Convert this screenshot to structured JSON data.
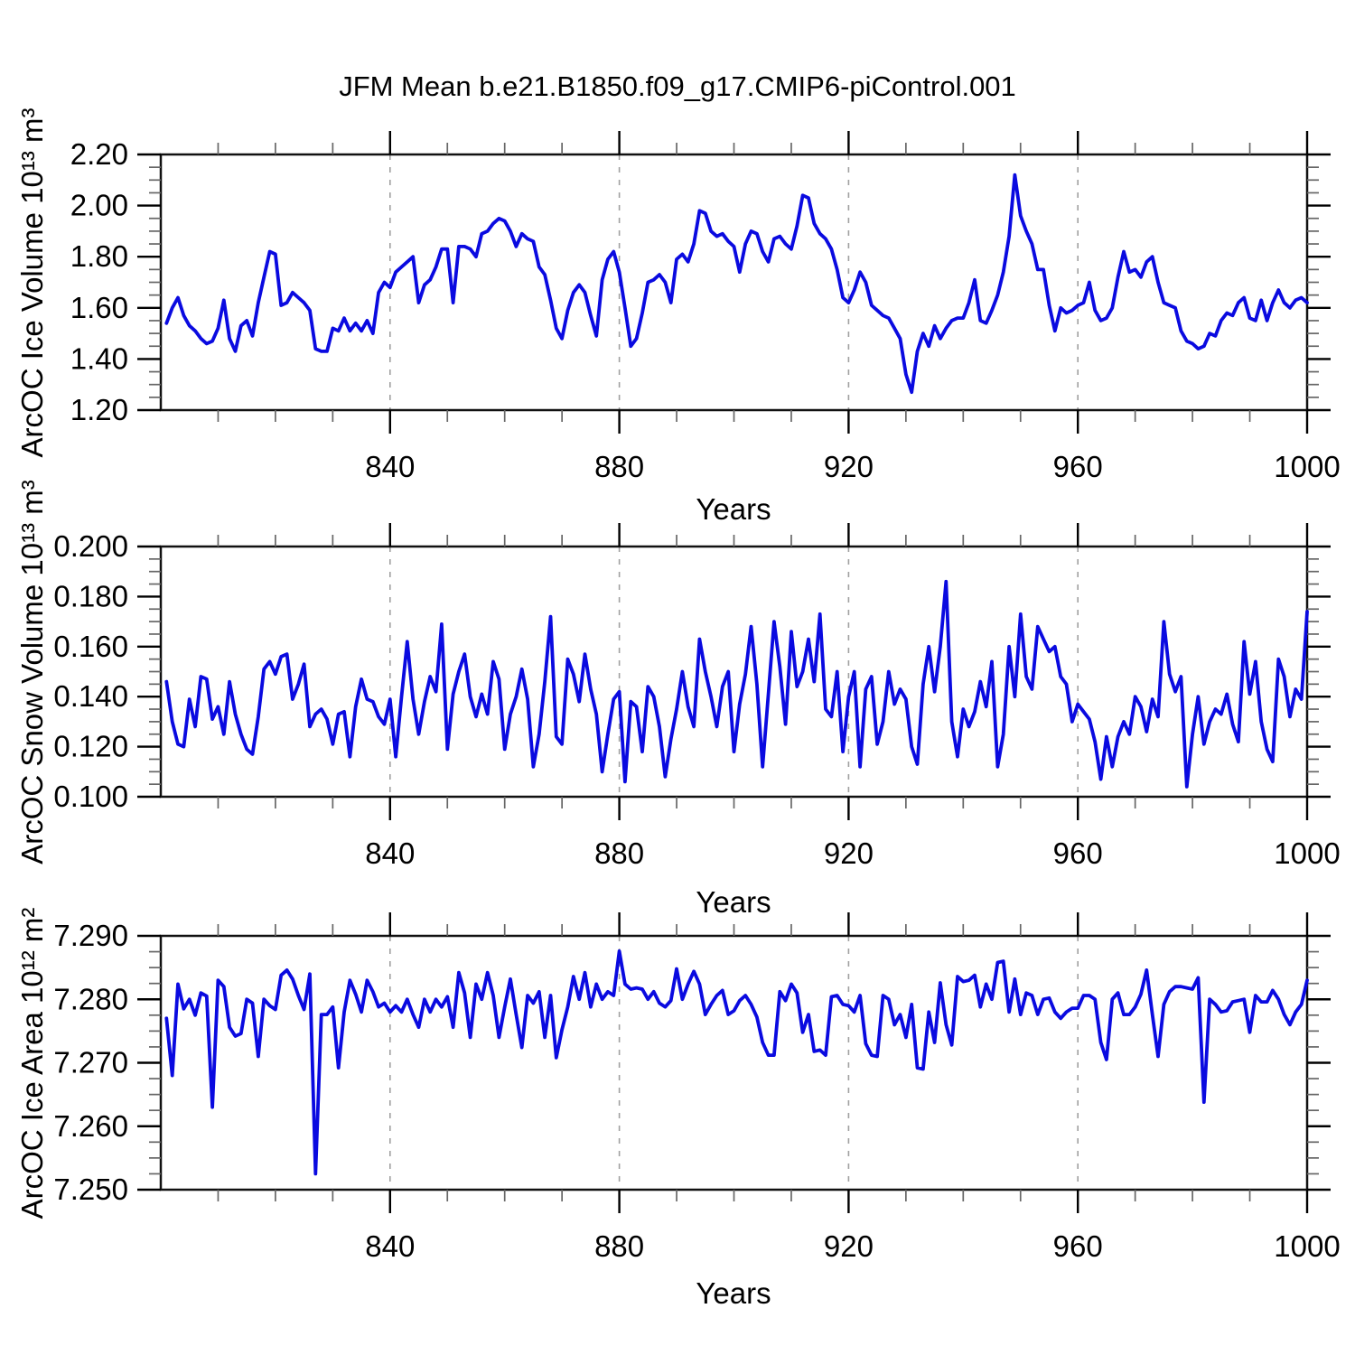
{
  "title": "JFM Mean b.e21.B1850.f09_g17.CMIP6-piControl.001",
  "colors": {
    "line": "#0a0ae0",
    "grid": "#a0a0a0",
    "frame": "#111111",
    "minor_tick": "#666666",
    "major_tick": "#000000"
  },
  "chart_data": [
    {
      "type": "line",
      "ylabel": "ArcOC Ice Volume 10¹³ m³",
      "xlabel": "Years",
      "ylim": [
        1.2,
        2.2
      ],
      "yticks": [
        1.2,
        1.4,
        1.6,
        1.8,
        2.0,
        2.2
      ],
      "ytick_labels": [
        "1.20",
        "1.40",
        "1.60",
        "1.80",
        "2.00",
        "2.20"
      ],
      "xlim": [
        800,
        1000
      ],
      "xticks": [
        840,
        880,
        920,
        960,
        1000
      ],
      "xtick_labels": [
        "840",
        "880",
        "920",
        "960",
        "1000"
      ],
      "xtick_minor": [
        810,
        820,
        830,
        850,
        860,
        870,
        890,
        900,
        910,
        930,
        940,
        950,
        970,
        980,
        990
      ],
      "gridlines_x": [
        840,
        880,
        920,
        960
      ],
      "x_start": 801,
      "values": [
        1.54,
        1.6,
        1.64,
        1.57,
        1.53,
        1.51,
        1.48,
        1.46,
        1.47,
        1.52,
        1.63,
        1.48,
        1.43,
        1.53,
        1.55,
        1.49,
        1.62,
        1.72,
        1.82,
        1.81,
        1.61,
        1.62,
        1.66,
        1.64,
        1.62,
        1.59,
        1.44,
        1.43,
        1.43,
        1.52,
        1.51,
        1.56,
        1.51,
        1.54,
        1.51,
        1.55,
        1.5,
        1.66,
        1.7,
        1.68,
        1.74,
        1.76,
        1.78,
        1.8,
        1.62,
        1.69,
        1.71,
        1.76,
        1.83,
        1.83,
        1.62,
        1.84,
        1.84,
        1.83,
        1.8,
        1.89,
        1.9,
        1.93,
        1.95,
        1.94,
        1.9,
        1.84,
        1.89,
        1.87,
        1.86,
        1.76,
        1.73,
        1.63,
        1.52,
        1.48,
        1.59,
        1.66,
        1.69,
        1.66,
        1.57,
        1.49,
        1.71,
        1.79,
        1.82,
        1.74,
        1.6,
        1.45,
        1.48,
        1.58,
        1.7,
        1.71,
        1.73,
        1.7,
        1.62,
        1.79,
        1.81,
        1.78,
        1.85,
        1.98,
        1.97,
        1.9,
        1.88,
        1.89,
        1.86,
        1.84,
        1.74,
        1.85,
        1.9,
        1.89,
        1.82,
        1.78,
        1.87,
        1.88,
        1.85,
        1.83,
        1.92,
        2.04,
        2.03,
        1.93,
        1.89,
        1.87,
        1.83,
        1.75,
        1.64,
        1.62,
        1.67,
        1.74,
        1.7,
        1.61,
        1.59,
        1.57,
        1.56,
        1.52,
        1.48,
        1.34,
        1.27,
        1.43,
        1.5,
        1.45,
        1.53,
        1.48,
        1.52,
        1.55,
        1.56,
        1.56,
        1.62,
        1.71,
        1.55,
        1.54,
        1.59,
        1.65,
        1.74,
        1.88,
        2.12,
        1.96,
        1.9,
        1.85,
        1.75,
        1.75,
        1.61,
        1.51,
        1.6,
        1.58,
        1.59,
        1.61,
        1.62,
        1.7,
        1.59,
        1.55,
        1.56,
        1.6,
        1.72,
        1.82,
        1.74,
        1.75,
        1.72,
        1.78,
        1.8,
        1.7,
        1.62,
        1.61,
        1.6,
        1.51,
        1.47,
        1.46,
        1.44,
        1.45,
        1.5,
        1.49,
        1.55,
        1.58,
        1.57,
        1.62,
        1.64,
        1.56,
        1.55,
        1.63,
        1.55,
        1.62,
        1.67,
        1.62,
        1.6,
        1.63,
        1.64,
        1.62
      ]
    },
    {
      "type": "line",
      "ylabel": "ArcOC Snow Volume 10¹³ m³",
      "xlabel": "Years",
      "ylim": [
        0.1,
        0.2
      ],
      "yticks": [
        0.1,
        0.12,
        0.14,
        0.16,
        0.18,
        0.2
      ],
      "ytick_labels": [
        "0.100",
        "0.120",
        "0.140",
        "0.160",
        "0.180",
        "0.200"
      ],
      "xlim": [
        800,
        1000
      ],
      "xticks": [
        840,
        880,
        920,
        960,
        1000
      ],
      "xtick_labels": [
        "840",
        "880",
        "920",
        "960",
        "1000"
      ],
      "xtick_minor": [
        810,
        820,
        830,
        850,
        860,
        870,
        890,
        900,
        910,
        930,
        940,
        950,
        970,
        980,
        990
      ],
      "gridlines_x": [
        840,
        880,
        920,
        960
      ],
      "x_start": 801,
      "values": [
        0.146,
        0.13,
        0.121,
        0.12,
        0.139,
        0.128,
        0.148,
        0.147,
        0.131,
        0.136,
        0.125,
        0.146,
        0.133,
        0.125,
        0.119,
        0.117,
        0.132,
        0.151,
        0.154,
        0.149,
        0.156,
        0.157,
        0.139,
        0.145,
        0.153,
        0.128,
        0.133,
        0.135,
        0.131,
        0.121,
        0.133,
        0.134,
        0.116,
        0.136,
        0.147,
        0.139,
        0.138,
        0.132,
        0.129,
        0.139,
        0.116,
        0.14,
        0.162,
        0.139,
        0.125,
        0.138,
        0.148,
        0.142,
        0.169,
        0.119,
        0.141,
        0.15,
        0.157,
        0.14,
        0.132,
        0.141,
        0.133,
        0.154,
        0.147,
        0.119,
        0.133,
        0.14,
        0.151,
        0.139,
        0.112,
        0.125,
        0.146,
        0.172,
        0.124,
        0.121,
        0.155,
        0.149,
        0.138,
        0.157,
        0.143,
        0.133,
        0.11,
        0.125,
        0.139,
        0.142,
        0.106,
        0.138,
        0.136,
        0.118,
        0.144,
        0.14,
        0.128,
        0.108,
        0.123,
        0.135,
        0.15,
        0.136,
        0.128,
        0.163,
        0.15,
        0.14,
        0.128,
        0.144,
        0.15,
        0.118,
        0.137,
        0.149,
        0.168,
        0.145,
        0.112,
        0.141,
        0.17,
        0.152,
        0.129,
        0.166,
        0.144,
        0.15,
        0.163,
        0.146,
        0.173,
        0.135,
        0.132,
        0.15,
        0.118,
        0.14,
        0.15,
        0.112,
        0.143,
        0.148,
        0.121,
        0.13,
        0.15,
        0.137,
        0.143,
        0.139,
        0.12,
        0.113,
        0.145,
        0.16,
        0.142,
        0.16,
        0.186,
        0.13,
        0.116,
        0.135,
        0.128,
        0.134,
        0.146,
        0.136,
        0.154,
        0.112,
        0.125,
        0.16,
        0.14,
        0.173,
        0.148,
        0.143,
        0.168,
        0.163,
        0.158,
        0.16,
        0.148,
        0.145,
        0.13,
        0.137,
        0.134,
        0.131,
        0.122,
        0.107,
        0.124,
        0.112,
        0.124,
        0.13,
        0.125,
        0.14,
        0.136,
        0.126,
        0.139,
        0.132,
        0.17,
        0.149,
        0.142,
        0.148,
        0.104,
        0.125,
        0.14,
        0.121,
        0.13,
        0.135,
        0.133,
        0.141,
        0.129,
        0.122,
        0.162,
        0.141,
        0.154,
        0.13,
        0.119,
        0.114,
        0.155,
        0.148,
        0.132,
        0.143,
        0.139,
        0.174
      ]
    },
    {
      "type": "line",
      "ylabel": "ArcOC Ice Area 10¹² m²",
      "xlabel": "Years",
      "ylim": [
        7.25,
        7.29
      ],
      "yticks": [
        7.25,
        7.26,
        7.27,
        7.28,
        7.29
      ],
      "ytick_labels": [
        "7.250",
        "7.260",
        "7.270",
        "7.280",
        "7.290"
      ],
      "xlim": [
        800,
        1000
      ],
      "xticks": [
        840,
        880,
        920,
        960,
        1000
      ],
      "xtick_labels": [
        "840",
        "880",
        "920",
        "960",
        "1000"
      ],
      "xtick_minor": [
        810,
        820,
        830,
        850,
        860,
        870,
        890,
        900,
        910,
        930,
        940,
        950,
        970,
        980,
        990
      ],
      "gridlines_x": [
        840,
        880,
        920,
        960
      ],
      "x_start": 801,
      "values": [
        7.277,
        7.268,
        7.2824,
        7.2785,
        7.28,
        7.2775,
        7.281,
        7.2805,
        7.263,
        7.283,
        7.282,
        7.2756,
        7.2742,
        7.2746,
        7.28,
        7.2794,
        7.271,
        7.28,
        7.279,
        7.2784,
        7.2838,
        7.2846,
        7.2832,
        7.2806,
        7.2784,
        7.284,
        7.2525,
        7.2776,
        7.2776,
        7.2788,
        7.2692,
        7.278,
        7.283,
        7.2808,
        7.278,
        7.283,
        7.2812,
        7.2788,
        7.2794,
        7.278,
        7.279,
        7.278,
        7.28,
        7.2776,
        7.2756,
        7.28,
        7.278,
        7.28,
        7.2788,
        7.2804,
        7.2756,
        7.2842,
        7.281,
        7.274,
        7.2824,
        7.28,
        7.2842,
        7.2806,
        7.274,
        7.2788,
        7.2832,
        7.2776,
        7.2724,
        7.2806,
        7.2794,
        7.2812,
        7.274,
        7.2806,
        7.2708,
        7.2752,
        7.2788,
        7.2836,
        7.28,
        7.2842,
        7.2788,
        7.2824,
        7.28,
        7.2812,
        7.2806,
        7.2876,
        7.2824,
        7.2816,
        7.2818,
        7.2816,
        7.28,
        7.2812,
        7.2794,
        7.2788,
        7.2798,
        7.2848,
        7.28,
        7.2824,
        7.2844,
        7.2824,
        7.2776,
        7.2792,
        7.2806,
        7.2814,
        7.2776,
        7.2782,
        7.2798,
        7.2806,
        7.2792,
        7.2772,
        7.2732,
        7.2712,
        7.2712,
        7.2812,
        7.2798,
        7.2824,
        7.281,
        7.2748,
        7.2776,
        7.2718,
        7.272,
        7.2712,
        7.2804,
        7.2806,
        7.2792,
        7.279,
        7.278,
        7.2806,
        7.273,
        7.2712,
        7.271,
        7.2806,
        7.28,
        7.276,
        7.2776,
        7.274,
        7.2792,
        7.2692,
        7.269,
        7.278,
        7.2732,
        7.2826,
        7.276,
        7.2728,
        7.2836,
        7.2828,
        7.283,
        7.2838,
        7.2788,
        7.2824,
        7.28,
        7.2858,
        7.286,
        7.278,
        7.2832,
        7.2776,
        7.281,
        7.2806,
        7.2776,
        7.28,
        7.2802,
        7.278,
        7.277,
        7.278,
        7.2786,
        7.2786,
        7.2806,
        7.2806,
        7.28,
        7.2732,
        7.2705,
        7.28,
        7.281,
        7.2776,
        7.2776,
        7.2788,
        7.2808,
        7.2846,
        7.2776,
        7.271,
        7.2792,
        7.2812,
        7.282,
        7.282,
        7.2818,
        7.2816,
        7.2834,
        7.2638,
        7.28,
        7.2792,
        7.278,
        7.2782,
        7.2796,
        7.2798,
        7.28,
        7.2748,
        7.2806,
        7.2796,
        7.2796,
        7.2814,
        7.28,
        7.2776,
        7.276,
        7.278,
        7.2792,
        7.283
      ]
    }
  ]
}
